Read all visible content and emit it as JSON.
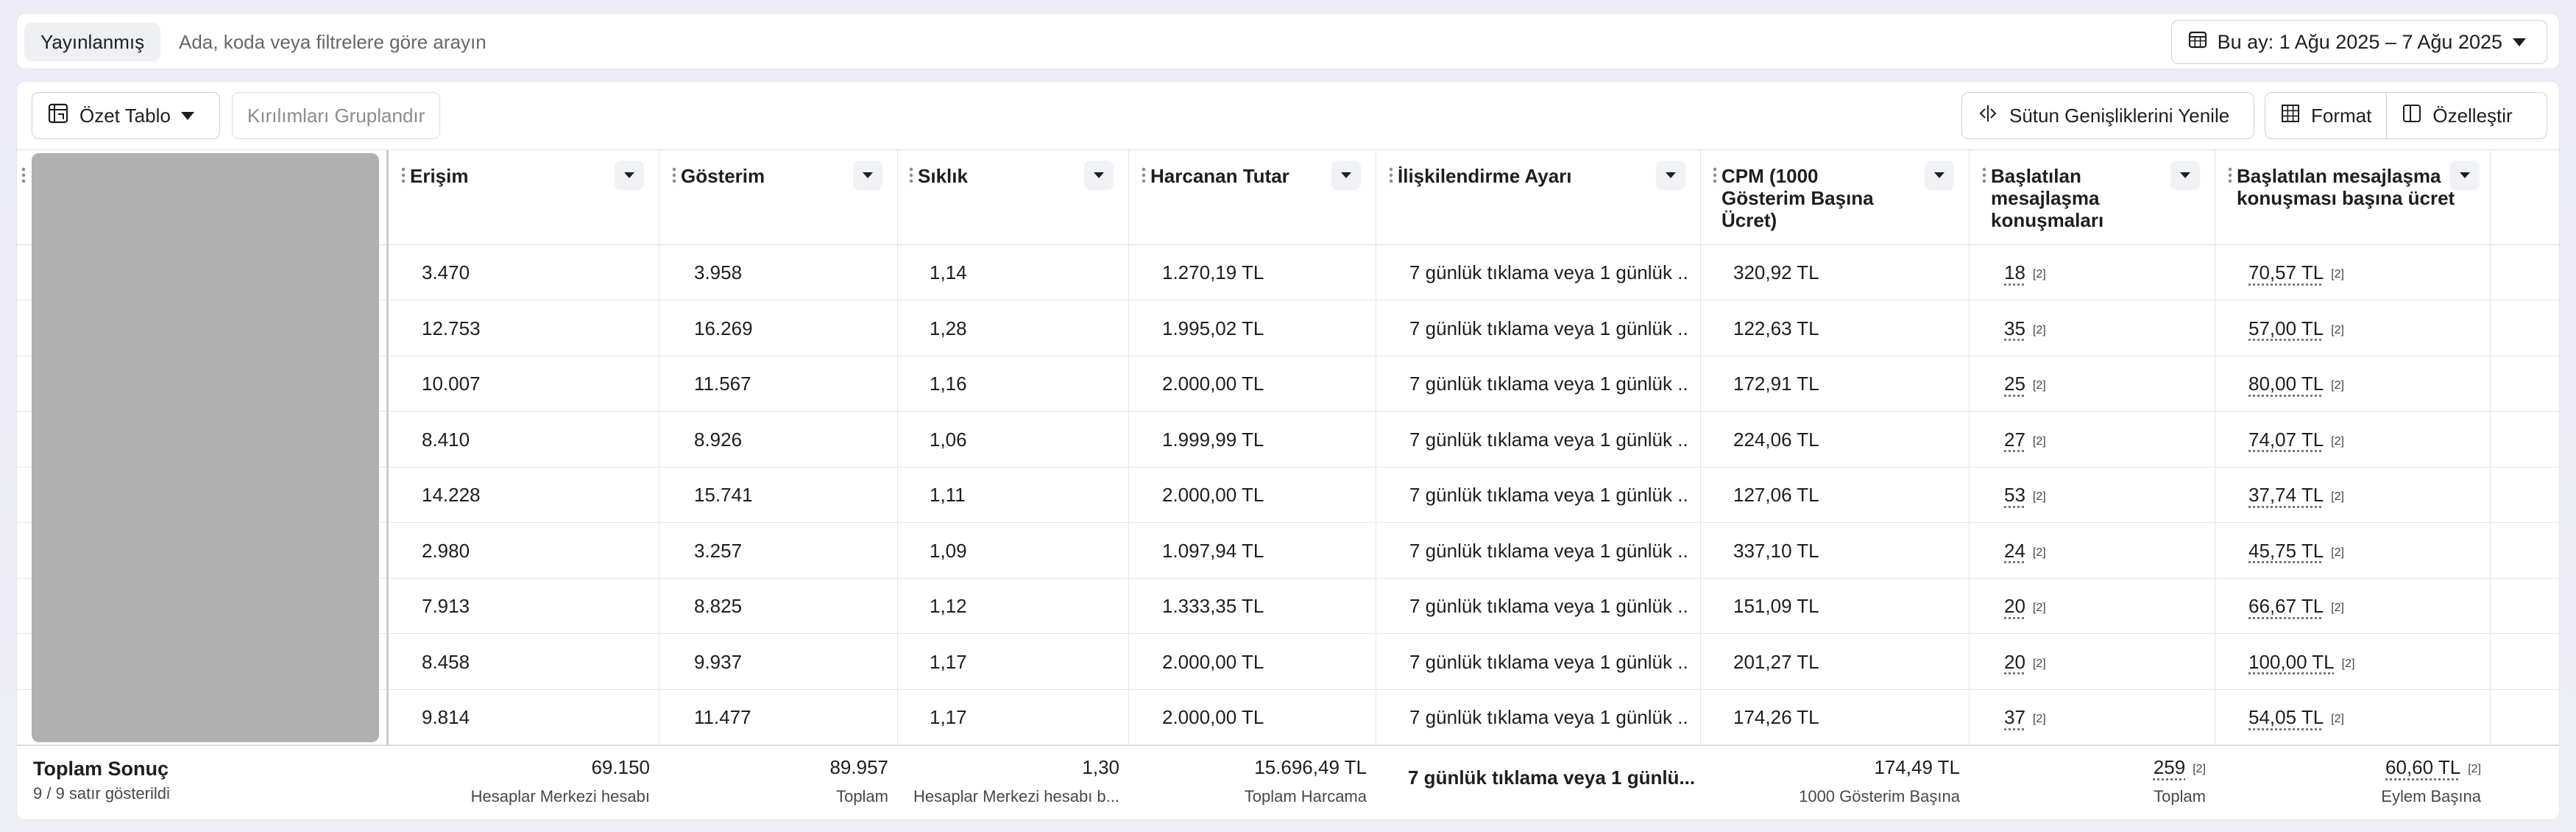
{
  "topbar": {
    "status_pill": "Yayınlanmış",
    "search_placeholder": "Ada, koda veya filtrelere göre arayın",
    "date_range": "Bu ay: 1 Ağu 2025 – 7 Ağu 2025"
  },
  "toolbar": {
    "summary_table": "Özet Tablo",
    "group_breakdowns": "Kırılımları Gruplandır",
    "reset_column_widths": "Sütun Genişliklerini Yenile",
    "format": "Format",
    "customize": "Özelleştir"
  },
  "columns": [
    {
      "label": "Erişim"
    },
    {
      "label": "Gösterim"
    },
    {
      "label": "Sıklık"
    },
    {
      "label": "Harcanan Tutar"
    },
    {
      "label": "İlişkilendirme Ayarı"
    },
    {
      "label": "CPM (1000 Gösterim Başına Ücret)"
    },
    {
      "label": "Başlatılan mesajlaşma konuşmaları"
    },
    {
      "label": "Başlatılan mesajlaşma konuşması başına ücret"
    }
  ],
  "rows": [
    {
      "reach": "3.470",
      "impressions": "3.958",
      "frequency": "1,14",
      "spend": "1.270,19 TL",
      "attribution": "7 günlük tıklama veya 1 günlük ...",
      "cpm": "320,92 TL",
      "conversations": "18",
      "cost_per_conversation": "70,57 TL"
    },
    {
      "reach": "12.753",
      "impressions": "16.269",
      "frequency": "1,28",
      "spend": "1.995,02 TL",
      "attribution": "7 günlük tıklama veya 1 günlük ...",
      "cpm": "122,63 TL",
      "conversations": "35",
      "cost_per_conversation": "57,00 TL"
    },
    {
      "reach": "10.007",
      "impressions": "11.567",
      "frequency": "1,16",
      "spend": "2.000,00 TL",
      "attribution": "7 günlük tıklama veya 1 günlük ...",
      "cpm": "172,91 TL",
      "conversations": "25",
      "cost_per_conversation": "80,00 TL"
    },
    {
      "reach": "8.410",
      "impressions": "8.926",
      "frequency": "1,06",
      "spend": "1.999,99 TL",
      "attribution": "7 günlük tıklama veya 1 günlük ...",
      "cpm": "224,06 TL",
      "conversations": "27",
      "cost_per_conversation": "74,07 TL"
    },
    {
      "reach": "14.228",
      "impressions": "15.741",
      "frequency": "1,11",
      "spend": "2.000,00 TL",
      "attribution": "7 günlük tıklama veya 1 günlük ...",
      "cpm": "127,06 TL",
      "conversations": "53",
      "cost_per_conversation": "37,74 TL"
    },
    {
      "reach": "2.980",
      "impressions": "3.257",
      "frequency": "1,09",
      "spend": "1.097,94 TL",
      "attribution": "7 günlük tıklama veya 1 günlük ...",
      "cpm": "337,10 TL",
      "conversations": "24",
      "cost_per_conversation": "45,75 TL"
    },
    {
      "reach": "7.913",
      "impressions": "8.825",
      "frequency": "1,12",
      "spend": "1.333,35 TL",
      "attribution": "7 günlük tıklama veya 1 günlük ...",
      "cpm": "151,09 TL",
      "conversations": "20",
      "cost_per_conversation": "66,67 TL"
    },
    {
      "reach": "8.458",
      "impressions": "9.937",
      "frequency": "1,17",
      "spend": "2.000,00 TL",
      "attribution": "7 günlük tıklama veya 1 günlük ...",
      "cpm": "201,27 TL",
      "conversations": "20",
      "cost_per_conversation": "100,00 TL"
    },
    {
      "reach": "9.814",
      "impressions": "11.477",
      "frequency": "1,17",
      "spend": "2.000,00 TL",
      "attribution": "7 günlük tıklama veya 1 günlük ...",
      "cpm": "174,26 TL",
      "conversations": "37",
      "cost_per_conversation": "54,05 TL"
    }
  ],
  "footnote_marker": "[2]",
  "total": {
    "label": "Toplam Sonuç",
    "rows_shown": "9 / 9 satır gösterildi",
    "reach": "69.150",
    "reach_sub": "Hesaplar Merkezi hesabı",
    "impressions": "89.957",
    "impressions_sub": "Toplam",
    "frequency": "1,30",
    "frequency_sub": "Hesaplar Merkezi hesabı b...",
    "spend": "15.696,49 TL",
    "spend_sub": "Toplam Harcama",
    "attribution": "7 günlük tıklama veya 1 günlü...",
    "cpm": "174,49 TL",
    "cpm_sub": "1000 Gösterim Başına",
    "conversations": "259",
    "conversations_sub": "Toplam",
    "cost_per_conversation": "60,60 TL",
    "cost_per_conversation_sub": "Eylem Başına"
  },
  "icons": {
    "date": "calendar-icon",
    "summary": "pivot-table-icon",
    "reset": "column-width-icon",
    "format": "grid-format-icon",
    "customize": "panel-layout-icon",
    "sort": "caret-down-icon"
  }
}
